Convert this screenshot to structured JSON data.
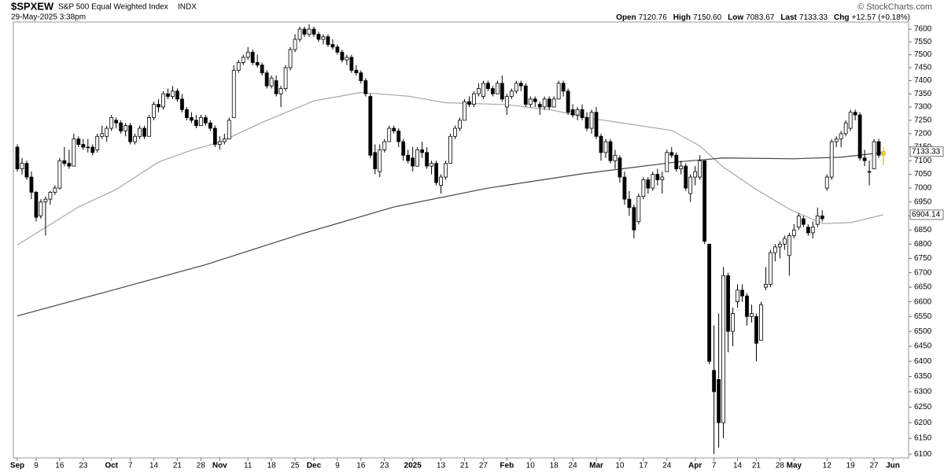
{
  "header": {
    "symbol": "$SPXEW",
    "name": "S&P 500 Equal Weighted Index",
    "exchange": "INDX",
    "timestamp": "29-May-2025 3:38pm",
    "stats": [
      {
        "label": "Open",
        "value": "7120.76"
      },
      {
        "label": "High",
        "value": "7150.60"
      },
      {
        "label": "Low",
        "value": "7083.67"
      },
      {
        "label": "Last",
        "value": "7133.33"
      },
      {
        "label": "Chg",
        "value": "+12.57 (+0.18%)"
      }
    ],
    "credit": "© StockCharts.com"
  },
  "chart_data": {
    "type": "candlestick",
    "log_scale": true,
    "grid": false,
    "colors": {
      "up": "#ffffff",
      "down": "#000000",
      "current": "#f5d742",
      "outline": "#000000"
    },
    "ylim": [
      6088,
      7628
    ],
    "yticks": [
      6100,
      6150,
      6200,
      6250,
      6300,
      6350,
      6400,
      6450,
      6500,
      6550,
      6600,
      6650,
      6700,
      6750,
      6800,
      6850,
      6900,
      6950,
      7000,
      7050,
      7100,
      7150,
      7200,
      7250,
      7300,
      7350,
      7400,
      7450,
      7500,
      7550,
      7600
    ],
    "categories": [
      "Sep",
      null,
      null,
      null,
      "9",
      null,
      null,
      null,
      null,
      "16",
      null,
      null,
      null,
      null,
      "23",
      null,
      null,
      null,
      null,
      null,
      "Oct",
      null,
      null,
      null,
      "7",
      null,
      null,
      null,
      null,
      "14",
      null,
      null,
      null,
      null,
      "21",
      null,
      null,
      null,
      null,
      "28",
      null,
      null,
      null,
      "Nov",
      null,
      null,
      null,
      null,
      null,
      "11",
      null,
      null,
      null,
      null,
      "18",
      null,
      null,
      null,
      null,
      "25",
      null,
      null,
      null,
      "Dec",
      null,
      null,
      null,
      null,
      "9",
      null,
      null,
      null,
      null,
      "16",
      null,
      null,
      null,
      null,
      "23",
      null,
      null,
      null,
      null,
      null,
      "2025",
      null,
      null,
      null,
      null,
      null,
      "13",
      null,
      null,
      null,
      null,
      "21",
      null,
      null,
      null,
      "27",
      null,
      null,
      null,
      null,
      "Feb",
      null,
      null,
      null,
      null,
      "10",
      null,
      null,
      null,
      null,
      "18",
      null,
      null,
      null,
      "24",
      null,
      null,
      null,
      null,
      "Mar",
      null,
      null,
      null,
      null,
      "10",
      null,
      null,
      null,
      null,
      "17",
      null,
      null,
      null,
      null,
      "24",
      null,
      null,
      null,
      null,
      null,
      "Apr",
      null,
      null,
      null,
      "7",
      null,
      null,
      null,
      null,
      "14",
      null,
      null,
      null,
      "21",
      null,
      null,
      null,
      null,
      "28",
      null,
      null,
      "May",
      null,
      null,
      null,
      null,
      null,
      null,
      "12",
      null,
      null,
      null,
      null,
      "19",
      null,
      null,
      null,
      null,
      "27",
      null,
      null,
      null,
      "Jun"
    ],
    "open": [
      7150,
      7070,
      7090,
      7040,
      6985,
      6900,
      6950,
      6960,
      6985,
      7000,
      7100,
      7090,
      7080,
      7180,
      7160,
      7150,
      7150,
      7140,
      7190,
      7190,
      7220,
      7250,
      7240,
      7210,
      7230,
      7170,
      7190,
      7220,
      7190,
      7260,
      7310,
      7300,
      7350,
      7340,
      7360,
      7330,
      7290,
      7260,
      7250,
      7230,
      7260,
      7240,
      7220,
      7160,
      7170,
      7180,
      7260,
      7440,
      7470,
      7490,
      7510,
      7470,
      7460,
      7430,
      7380,
      7400,
      7350,
      7370,
      7450,
      7520,
      7560,
      7600,
      7580,
      7600,
      7580,
      7560,
      7570,
      7540,
      7530,
      7510,
      7480,
      7490,
      7440,
      7430,
      7400,
      7340,
      7130,
      7060,
      7140,
      7170,
      7220,
      7210,
      7170,
      7120,
      7110,
      7080,
      7140,
      7130,
      7080,
      7090,
      7010,
      7040,
      7090,
      7190,
      7220,
      7250,
      7320,
      7310,
      7350,
      7340,
      7390,
      7370,
      7350,
      7390,
      7300,
      7340,
      7360,
      7390,
      7380,
      7310,
      7330,
      7310,
      7300,
      7330,
      7300,
      7330,
      7390,
      7360,
      7290,
      7270,
      7290,
      7260,
      7220,
      7280,
      7190,
      7130,
      7170,
      7100,
      7110,
      7040,
      6960,
      6930,
      6880,
      6970,
      7030,
      7000,
      7050,
      7030,
      7060,
      7130,
      7120,
      7070,
      7080,
      6980,
      7040,
      7040,
      7100,
      6800,
      6370,
      6340,
      6200,
      6690,
      6500,
      6600,
      6640,
      6620,
      6550,
      6550,
      6470,
      6650,
      6660,
      6770,
      6790,
      6800,
      6760,
      6830,
      6860,
      6890,
      6860,
      6840,
      6870,
      6900,
      7000,
      7040,
      7170,
      7180,
      7200,
      7220,
      7280,
      7270,
      7110,
      7060,
      7070,
      7170,
      7120.76,
      null,
      null
    ],
    "high": [
      7160,
      7110,
      7100,
      7060,
      6990,
      6960,
      6970,
      6990,
      7010,
      7110,
      7150,
      7140,
      7200,
      7190,
      7180,
      7180,
      7160,
      7200,
      7230,
      7230,
      7270,
      7260,
      7250,
      7240,
      7240,
      7200,
      7230,
      7230,
      7270,
      7320,
      7330,
      7360,
      7370,
      7380,
      7370,
      7350,
      7300,
      7280,
      7270,
      7270,
      7270,
      7250,
      7230,
      7190,
      7200,
      7260,
      7460,
      7480,
      7500,
      7530,
      7520,
      7500,
      7470,
      7440,
      7420,
      7420,
      7380,
      7460,
      7530,
      7580,
      7610,
      7610,
      7620,
      7610,
      7590,
      7580,
      7580,
      7560,
      7540,
      7520,
      7500,
      7500,
      7460,
      7440,
      7410,
      7350,
      7160,
      7160,
      7180,
      7230,
      7230,
      7220,
      7180,
      7140,
      7150,
      7150,
      7170,
      7150,
      7100,
      7100,
      7050,
      7100,
      7200,
      7230,
      7260,
      7330,
      7340,
      7360,
      7390,
      7400,
      7400,
      7380,
      7400,
      7420,
      7350,
      7370,
      7400,
      7400,
      7390,
      7340,
      7340,
      7320,
      7340,
      7340,
      7340,
      7400,
      7400,
      7370,
      7310,
      7300,
      7310,
      7280,
      7290,
      7300,
      7200,
      7180,
      7180,
      7140,
      7120,
      7060,
      6990,
      6940,
      6980,
      7040,
      7040,
      7060,
      7070,
      7060,
      7140,
      7150,
      7130,
      7100,
      7090,
      7050,
      7080,
      7120,
      7100,
      6800,
      6520,
      6560,
      6720,
      6700,
      6580,
      6660,
      6660,
      6630,
      6590,
      6560,
      6600,
      6720,
      6780,
      6800,
      6810,
      6830,
      6840,
      6870,
      6910,
      6900,
      6870,
      6880,
      6930,
      6920,
      7050,
      7180,
      7190,
      7210,
      7250,
      7290,
      7290,
      7280,
      7140,
      7100,
      7180,
      7180,
      7150.6,
      null,
      null
    ],
    "low": [
      7060,
      7050,
      7030,
      6960,
      6880,
      6890,
      6830,
      6940,
      6975,
      6995,
      7080,
      7070,
      7080,
      7150,
      7140,
      7130,
      7120,
      7130,
      7180,
      7170,
      7210,
      7220,
      7200,
      7190,
      7160,
      7160,
      7180,
      7180,
      7190,
      7250,
      7280,
      7290,
      7330,
      7330,
      7320,
      7280,
      7250,
      7240,
      7220,
      7230,
      7230,
      7210,
      7150,
      7140,
      7160,
      7180,
      7260,
      7430,
      7460,
      7480,
      7460,
      7450,
      7420,
      7370,
      7370,
      7340,
      7300,
      7360,
      7440,
      7510,
      7550,
      7570,
      7570,
      7570,
      7550,
      7540,
      7530,
      7520,
      7500,
      7470,
      7460,
      7430,
      7420,
      7390,
      7340,
      7110,
      7050,
      7040,
      7130,
      7170,
      7200,
      7150,
      7100,
      7090,
      7060,
      7080,
      7110,
      7070,
      7050,
      7010,
      6980,
      7030,
      7090,
      7180,
      7210,
      7250,
      7300,
      7300,
      7340,
      7330,
      7360,
      7340,
      7350,
      7320,
      7270,
      7330,
      7350,
      7360,
      7300,
      7300,
      7300,
      7270,
      7290,
      7290,
      7300,
      7330,
      7340,
      7270,
      7260,
      7250,
      7250,
      7210,
      7200,
      7180,
      7100,
      7110,
      7090,
      7070,
      7020,
      6940,
      6900,
      6820,
      6870,
      6960,
      6980,
      6990,
      7010,
      6980,
      7060,
      7110,
      7060,
      7050,
      6990,
      6950,
      7010,
      7030,
      6800,
      6390,
      6100,
      6120,
      6150,
      6430,
      6450,
      6580,
      6600,
      6520,
      6530,
      6400,
      6470,
      6640,
      6650,
      6740,
      6750,
      6780,
      6690,
      6820,
      6850,
      6860,
      6830,
      6820,
      6860,
      6880,
      6990,
      7030,
      7150,
      7150,
      7190,
      7210,
      7250,
      7100,
      7080,
      7010,
      7070,
      7110,
      7083.67,
      null,
      null
    ],
    "close": [
      7070,
      7090,
      7040,
      6985,
      6895,
      6950,
      6960,
      6985,
      7000,
      7100,
      7090,
      7080,
      7180,
      7160,
      7150,
      7150,
      7130,
      7190,
      7200,
      7220,
      7260,
      7240,
      7210,
      7230,
      7170,
      7190,
      7220,
      7190,
      7260,
      7310,
      7300,
      7350,
      7340,
      7360,
      7330,
      7290,
      7260,
      7250,
      7230,
      7260,
      7240,
      7220,
      7160,
      7170,
      7180,
      7250,
      7440,
      7470,
      7490,
      7510,
      7470,
      7460,
      7430,
      7380,
      7410,
      7350,
      7370,
      7450,
      7520,
      7560,
      7600,
      7580,
      7600,
      7580,
      7560,
      7570,
      7540,
      7530,
      7510,
      7480,
      7490,
      7440,
      7430,
      7400,
      7350,
      7120,
      7070,
      7140,
      7170,
      7220,
      7210,
      7170,
      7120,
      7100,
      7080,
      7140,
      7130,
      7080,
      7090,
      7020,
      7040,
      7090,
      7190,
      7220,
      7250,
      7320,
      7310,
      7350,
      7370,
      7390,
      7370,
      7350,
      7390,
      7330,
      7340,
      7360,
      7390,
      7380,
      7310,
      7330,
      7320,
      7300,
      7330,
      7300,
      7330,
      7390,
      7360,
      7280,
      7270,
      7290,
      7260,
      7220,
      7280,
      7190,
      7130,
      7170,
      7100,
      7120,
      7040,
      6960,
      6930,
      6850,
      6970,
      7030,
      7000,
      7050,
      7030,
      7040,
      7130,
      7120,
      7070,
      7080,
      7000,
      7040,
      7060,
      7100,
      6810,
      6400,
      6300,
      6200,
      6690,
      6500,
      6560,
      6640,
      6620,
      6550,
      6560,
      6460,
      6590,
      6660,
      6770,
      6790,
      6800,
      6820,
      6830,
      6850,
      6900,
      6870,
      6840,
      6860,
      6900,
      6890,
      7040,
      7170,
      7180,
      7200,
      7240,
      7280,
      7270,
      7110,
      7100,
      7060,
      7170,
      7120,
      7133.33,
      null,
      null
    ],
    "overlays": [
      {
        "color": "#a8a8a8",
        "x": [
          0,
          13,
          21,
          30,
          37,
          43,
          52,
          63,
          73,
          83,
          91,
          104,
          114,
          122,
          130,
          139,
          145,
          150,
          157,
          164,
          171,
          177,
          184
        ],
        "values": [
          6797,
          6932,
          6995,
          7095,
          7139,
          7168,
          7242,
          7323,
          7355,
          7341,
          7316,
          7309,
          7287,
          7257,
          7236,
          7212,
          7154,
          7076,
          6995,
          6924,
          6873,
          6876,
          6904.14
        ]
      },
      {
        "color": "#444444",
        "x": [
          0,
          20,
          40,
          60,
          80,
          100,
          120,
          140,
          150,
          165,
          175,
          184
        ],
        "values": [
          6552,
          6639,
          6728,
          6834,
          6932,
          7000,
          7052,
          7095,
          7110,
          7107,
          7113,
          7130
        ]
      }
    ]
  }
}
